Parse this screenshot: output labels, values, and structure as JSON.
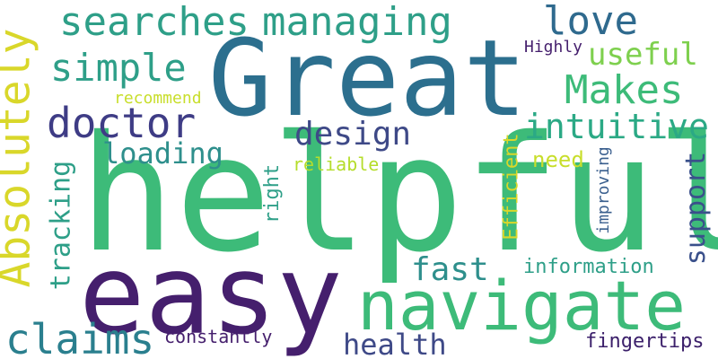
{
  "word_cloud": {
    "background": "#ffffff",
    "words": [
      {
        "text": "helpful",
        "color": "#3dbb79"
      },
      {
        "text": "Great",
        "color": "#2c6f8e"
      },
      {
        "text": "easy",
        "color": "#451f6d"
      },
      {
        "text": "navigate",
        "color": "#3dbb79"
      },
      {
        "text": "Absolutely",
        "color": "#d9d72a"
      },
      {
        "text": "searches",
        "color": "#2e9f88"
      },
      {
        "text": "managing",
        "color": "#2e9f88"
      },
      {
        "text": "love",
        "color": "#2f6a8e"
      },
      {
        "text": "simple",
        "color": "#2e9f88"
      },
      {
        "text": "useful",
        "color": "#7ed04e"
      },
      {
        "text": "Makes",
        "color": "#3dbb79"
      },
      {
        "text": "doctor",
        "color": "#3e3c85"
      },
      {
        "text": "design",
        "color": "#3e4987"
      },
      {
        "text": "intuitive",
        "color": "#2ba985"
      },
      {
        "text": "loading",
        "color": "#2e8f8c"
      },
      {
        "text": "tracking",
        "color": "#2e9f88"
      },
      {
        "text": "right",
        "color": "#2e9f88"
      },
      {
        "text": "reliable",
        "color": "#b5dd2b"
      },
      {
        "text": "Efficient",
        "color": "#d9d72a"
      },
      {
        "text": "need",
        "color": "#c8de2b"
      },
      {
        "text": "support",
        "color": "#3a508b"
      },
      {
        "text": "improving",
        "color": "#3a5f8e"
      },
      {
        "text": "fast",
        "color": "#2e8f8c"
      },
      {
        "text": "information",
        "color": "#2e9f88"
      },
      {
        "text": "claims",
        "color": "#2a7f8e"
      },
      {
        "text": "constantly",
        "color": "#451f6d"
      },
      {
        "text": "health",
        "color": "#3e4987"
      },
      {
        "text": "fingertips",
        "color": "#3b1f6a"
      },
      {
        "text": "recommend",
        "color": "#c8de2b"
      },
      {
        "text": "Highly",
        "color": "#451f6d"
      }
    ]
  }
}
